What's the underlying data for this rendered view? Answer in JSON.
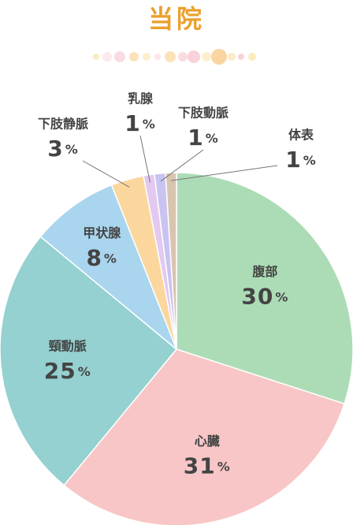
{
  "chart_data": {
    "type": "pie",
    "title": "当院",
    "categories": [
      "腹部",
      "心臓",
      "頸動脈",
      "甲状腺",
      "下肢静脈",
      "乳腺",
      "下肢動脈",
      "体表"
    ],
    "values": [
      30,
      31,
      25,
      8,
      3,
      1,
      1,
      1
    ],
    "value_labels": [
      "30%",
      "31%",
      "25%",
      "8%",
      "3%",
      "1%",
      "1%",
      "1%"
    ],
    "colors": [
      "#acdcb6",
      "#f8c6c6",
      "#94d1d0",
      "#a9d5ee",
      "#fbd79e",
      "#e3c9f0",
      "#c8c3f0",
      "#d9c4b0"
    ]
  }
}
